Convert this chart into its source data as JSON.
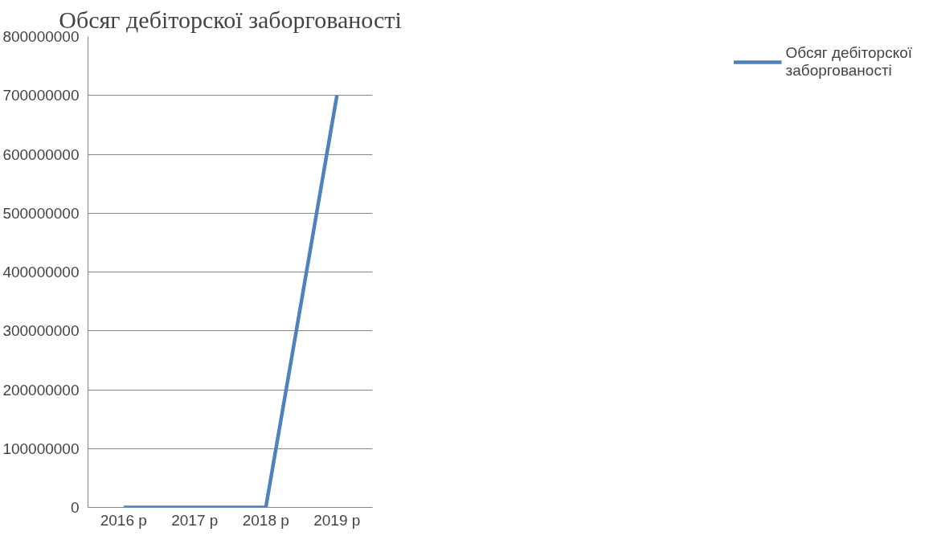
{
  "chart_data": {
    "type": "line",
    "title": "Обсяг дебіторскої заборгованості",
    "categories": [
      "2016 р",
      "2017 р",
      "2018 р",
      "2019 р"
    ],
    "series": [
      {
        "name": "Обсяг дебіторскої заборгованості",
        "color": "#4f81bd",
        "values": [
          0,
          0,
          0,
          700000000
        ]
      }
    ],
    "ylim": [
      0,
      800000000
    ],
    "yticks": [
      0,
      100000000,
      200000000,
      300000000,
      400000000,
      500000000,
      600000000,
      700000000,
      800000000
    ],
    "grid": "y",
    "legend": "right",
    "marker": "none",
    "line_style": "solid"
  }
}
